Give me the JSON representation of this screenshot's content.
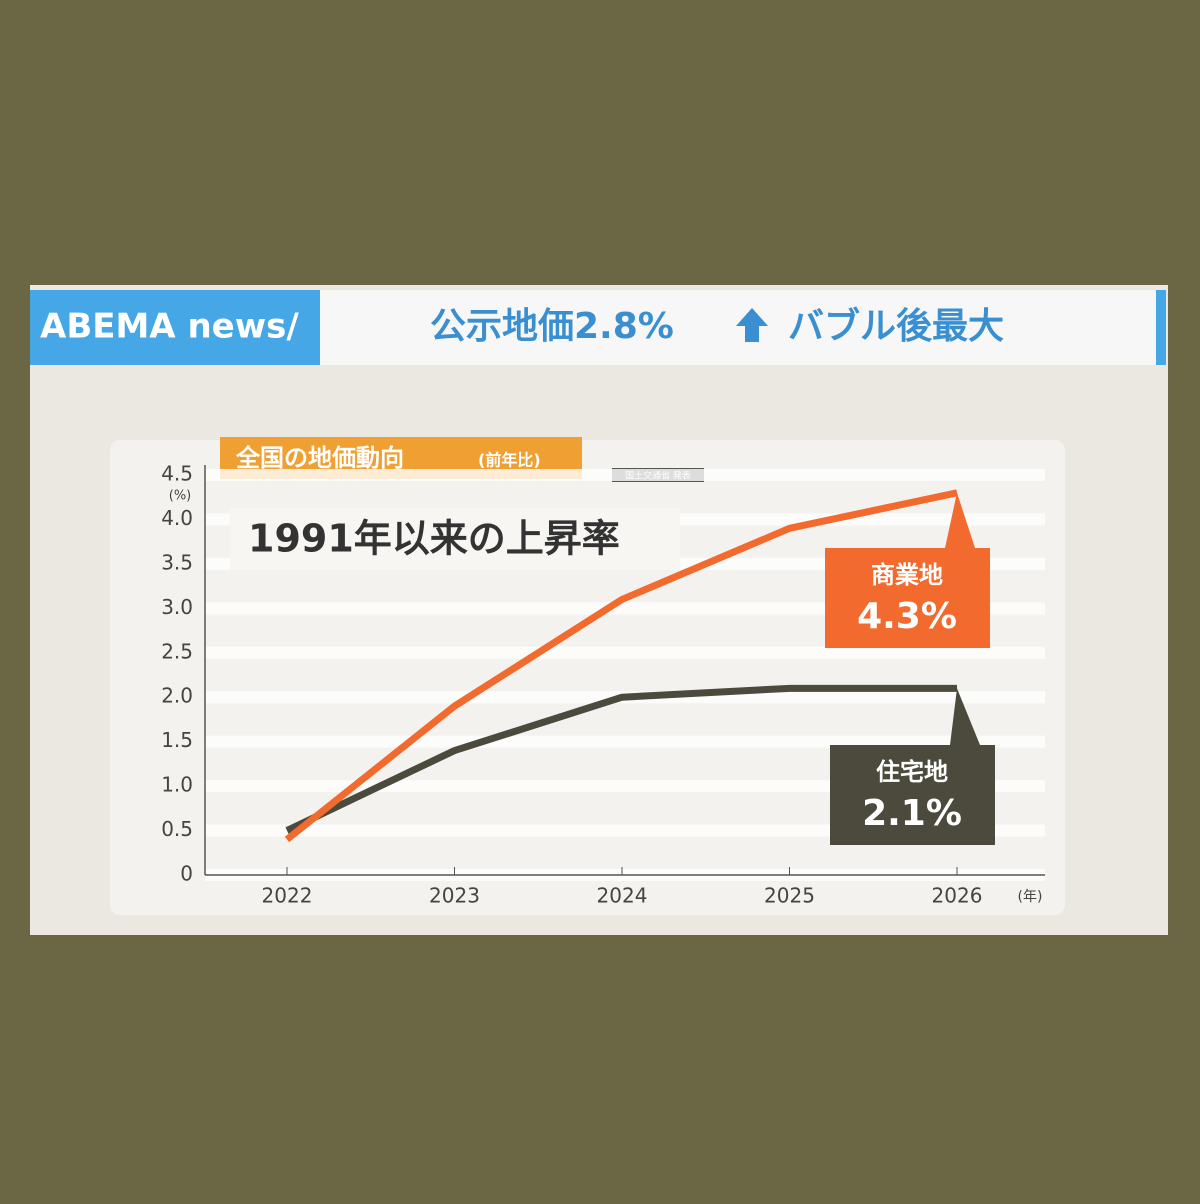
{
  "brand": "ABEMA news/",
  "chart_data": {
    "type": "line",
    "title": [
      "公示地価2.8%",
      "バブル後最大"
    ],
    "subtitle": "全国の地価動向",
    "subtitle_note": "(前年比)",
    "source": "国土交通省 発表",
    "annotation": "1991年以来の上昇率",
    "y_unit": "(%)",
    "x_unit": "(年)",
    "categories": [
      "2022",
      "2023",
      "2024",
      "2025",
      "2026"
    ],
    "series": [
      {
        "name": "商業地",
        "color": "#f26a2e",
        "values": [
          0.4,
          1.9,
          3.1,
          3.9,
          4.3
        ],
        "value_labels": [
          null,
          null,
          null,
          null,
          "4.3%"
        ]
      },
      {
        "name": "住宅地",
        "color": "#4b4a3c",
        "values": [
          0.5,
          1.4,
          2.0,
          2.1,
          2.1
        ],
        "value_labels": [
          null,
          null,
          null,
          null,
          "2.1%"
        ]
      }
    ],
    "ylim": [
      0,
      4.5
    ],
    "yticks": [
      0,
      {
        "value": 0.5,
        "label": "0.5"
      },
      {
        "value": 1,
        "label": "1.0"
      },
      {
        "value": 1.5,
        "label": "1.5"
      },
      {
        "value": 2,
        "label": "2.0"
      },
      {
        "value": 2.5,
        "label": "2.5"
      },
      {
        "value": 3,
        "label": "3.0"
      },
      {
        "value": 3.5,
        "label": "3.5"
      },
      {
        "value": 4,
        "label": "4.0"
      },
      {
        "value": 4.5,
        "label": "4.5"
      }
    ],
    "grid": true
  }
}
